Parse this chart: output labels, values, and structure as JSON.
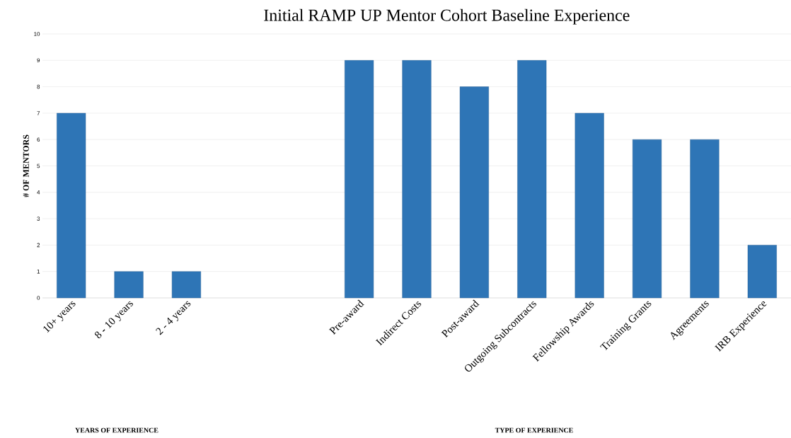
{
  "chart_data": {
    "type": "bar",
    "title": "Initial RAMP UP Mentor Cohort Baseline Experience",
    "ylabel": "# OF MENTORS",
    "categories": [
      "10+ years",
      "8 - 10 years",
      "2 - 4 years",
      null,
      null,
      "Pre-award",
      "Indirect Costs",
      "Post-award",
      "Outgoing Subcontracts",
      "Fellowship Awards",
      "Training Grants",
      "Agreements",
      "IRB Experience"
    ],
    "values": [
      7,
      1,
      1,
      null,
      null,
      9,
      9,
      8,
      9,
      7,
      6,
      6,
      2
    ],
    "color": "#2e75b6",
    "ylim": [
      0,
      10
    ],
    "yticks": [
      0,
      1,
      2,
      3,
      4,
      5,
      6,
      7,
      8,
      9,
      10
    ],
    "grid": "y",
    "annotations": [
      "YEARS OF EXPERIENCE",
      "TYPE OF EXPERIENCE"
    ]
  }
}
